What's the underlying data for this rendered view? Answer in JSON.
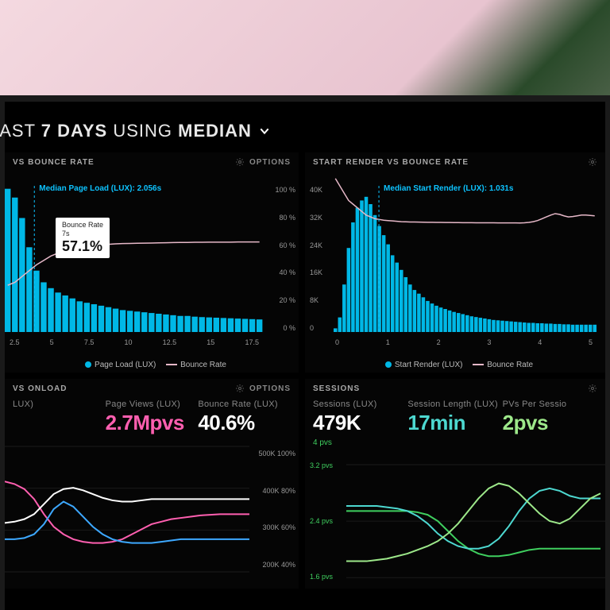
{
  "header": {
    "prefix": "LAST",
    "days": "7 DAYS",
    "using": "USING",
    "agg": "MEDIAN"
  },
  "colors": {
    "bg": "#000000",
    "bar": "#00b8e6",
    "bar_glow": "#07d7ff",
    "line_bounce": "#e6b8c8",
    "median_line": "#0dc3ff",
    "text": "#cccccc",
    "muted": "#888888",
    "tooltip_bg": "#ffffff",
    "pink": "#ff5fb0",
    "white": "#ffffff",
    "teal": "#4dd8d0",
    "blue": "#3da8ff",
    "green": "#3fcf5f",
    "lightgreen": "#9de88a"
  },
  "panel1": {
    "title": "VS BOUNCE RATE",
    "options": "OPTIONS",
    "median_label": "Median Page Load (LUX): 2.056s",
    "median_x": 2.056,
    "tooltip": {
      "label1": "Bounce Rate",
      "label2": "7s",
      "value": "57.1%"
    },
    "x": {
      "min": 0,
      "max": 18,
      "ticks": [
        "2.5",
        "5",
        "7.5",
        "10",
        "12.5",
        "15",
        "17.5"
      ]
    },
    "y_right": {
      "min": 0,
      "max": 100,
      "ticks": [
        "100 %",
        "80 %",
        "60 %",
        "40 %",
        "20 %",
        "0 %"
      ]
    },
    "bars": [
      98,
      92,
      78,
      58,
      42,
      34,
      30,
      27,
      25,
      23,
      21,
      20,
      19,
      18,
      17,
      16,
      15,
      14.5,
      14,
      13.5,
      13,
      12.5,
      12,
      11.5,
      11,
      11,
      10.5,
      10.2,
      10,
      9.8,
      9.6,
      9.4,
      9.2,
      9,
      8.8,
      8.6
    ],
    "line": [
      32,
      34,
      38,
      42,
      46,
      49,
      52,
      54,
      56,
      57,
      57.5,
      57.8,
      58,
      59,
      60,
      60.3,
      60.5,
      60.6,
      60.7,
      60.8,
      60.9,
      61,
      61.1,
      61.2,
      61.3,
      61.3,
      61.4,
      61.4,
      61.5,
      61.5,
      61.5,
      61.5,
      61.6,
      61.6,
      61.6,
      61.6
    ],
    "legend": {
      "a": "Page Load (LUX)",
      "b": "Bounce Rate"
    }
  },
  "panel2": {
    "title": "START RENDER VS BOUNCE RATE",
    "median_label": "Median Start Render (LUX): 1.031s",
    "median_x": 1.031,
    "x": {
      "min": 0,
      "max": 6,
      "ticks": [
        "0",
        "1",
        "2",
        "3",
        "4",
        "5"
      ]
    },
    "y_left": {
      "min": 0,
      "max": 40000,
      "ticks": [
        "40K",
        "32K",
        "24K",
        "16K",
        "8K",
        "0"
      ]
    },
    "bars": [
      1,
      4,
      13,
      23,
      30,
      34,
      36,
      37,
      35,
      32,
      29,
      26.5,
      24,
      21,
      19,
      17,
      15,
      13,
      11.5,
      10.5,
      9.5,
      8.5,
      7.8,
      7.2,
      6.7,
      6.3,
      5.9,
      5.5,
      5.2,
      4.9,
      4.6,
      4.3,
      4.1,
      3.9,
      3.7,
      3.5,
      3.3,
      3.2,
      3.1,
      3,
      2.9,
      2.8,
      2.7,
      2.6,
      2.5,
      2.5,
      2.4,
      2.4,
      2.3,
      2.3,
      2.2,
      2.2,
      2.1,
      2.1,
      2,
      2,
      2,
      2,
      2,
      2
    ],
    "line": [
      42,
      40,
      38,
      36,
      35,
      34,
      33,
      32,
      31.5,
      31,
      30.8,
      30.6,
      30.5,
      30.4,
      30.3,
      30.2,
      30.15,
      30.1,
      30.1,
      30.08,
      30.06,
      30.04,
      30.02,
      30,
      30,
      29.98,
      29.96,
      29.95,
      29.94,
      29.93,
      29.92,
      29.91,
      29.9,
      29.9,
      29.89,
      29.88,
      29.88,
      29.87,
      29.87,
      29.86,
      29.86,
      29.86,
      29.85,
      29.9,
      30,
      30.2,
      30.5,
      31,
      31.5,
      32,
      32.4,
      32.2,
      31.8,
      31.5,
      31.6,
      31.8,
      32,
      32,
      31.9,
      31.8
    ],
    "legend": {
      "a": "Start Render (LUX)",
      "b": "Bounce Rate"
    }
  },
  "panel3": {
    "title": "VS ONLOAD",
    "options": "OPTIONS",
    "metrics": [
      {
        "label": "LUX)",
        "value": "",
        "color": "#3da8ff"
      },
      {
        "label": "Page Views (LUX)",
        "value": "2.7Mpvs",
        "color": "#ff5fb0"
      },
      {
        "label": "Bounce Rate (LUX)",
        "value": "40.6%",
        "color": "#ffffff"
      }
    ],
    "y_right": {
      "ticks": [
        "500K  100%",
        "400K  80%",
        "300K  60%",
        "200K  40%"
      ]
    },
    "lines": {
      "pink": [
        72,
        70,
        66,
        58,
        46,
        36,
        30,
        26,
        24,
        23,
        23,
        24,
        26,
        30,
        34,
        38,
        40,
        42,
        43,
        44,
        45,
        45.5,
        46,
        46,
        46,
        46
      ],
      "white": [
        39,
        40,
        42,
        46,
        54,
        62,
        66,
        67,
        65,
        62,
        59,
        57,
        56,
        56,
        57,
        58,
        58,
        58,
        58,
        58,
        58,
        58,
        58,
        58,
        58,
        58
      ],
      "blue": [
        26,
        26,
        27,
        30,
        38,
        50,
        56,
        52,
        44,
        36,
        30,
        26,
        24,
        23,
        23,
        23,
        24,
        25,
        26,
        26,
        26,
        26,
        26,
        26,
        26,
        26
      ]
    }
  },
  "panel4": {
    "title": "SESSIONS",
    "metrics": [
      {
        "label": "Sessions (LUX)",
        "value": "479K",
        "sub": "4 pvs",
        "color": "#ffffff"
      },
      {
        "label": "Session Length (LUX)",
        "value": "17min",
        "color": "#4dd8d0"
      },
      {
        "label": "PVs Per Sessio",
        "value": "2pvs",
        "color": "#9de88a"
      }
    ],
    "y_left": {
      "ticks": [
        "3.2 pvs",
        "2.4 pvs",
        "1.6 pvs"
      ]
    },
    "lines": {
      "green": [
        58,
        58,
        58,
        58,
        58,
        58,
        58,
        57,
        55,
        50,
        42,
        34,
        28,
        24,
        22,
        22,
        23,
        25,
        27,
        28,
        28,
        28,
        28,
        28,
        28,
        28
      ],
      "teal": [
        62,
        62,
        62,
        62,
        61,
        60,
        58,
        54,
        48,
        40,
        34,
        30,
        28,
        28,
        30,
        36,
        46,
        58,
        68,
        74,
        76,
        74,
        70,
        68,
        68,
        68
      ],
      "lgreen": [
        18,
        18,
        18,
        19,
        20,
        22,
        24,
        27,
        30,
        34,
        40,
        48,
        58,
        68,
        76,
        80,
        78,
        72,
        64,
        56,
        50,
        48,
        52,
        60,
        68,
        72
      ]
    }
  }
}
